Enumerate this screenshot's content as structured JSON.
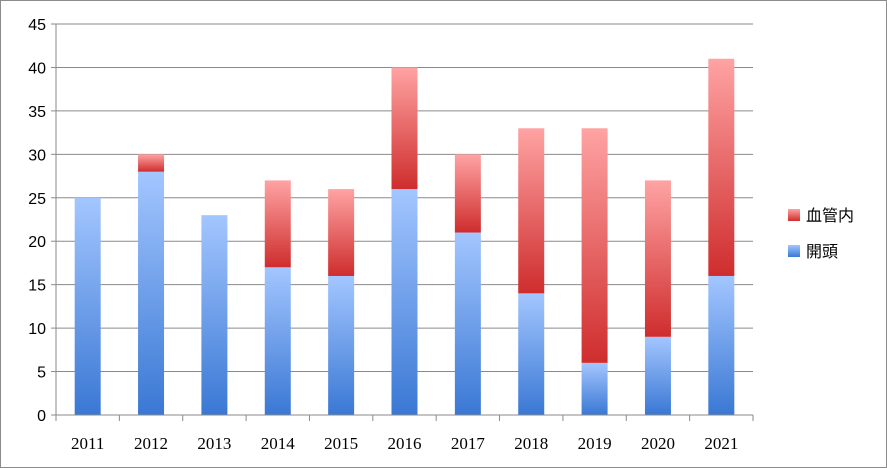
{
  "chart_data": {
    "type": "bar",
    "stacked": true,
    "categories": [
      "2011",
      "2012",
      "2013",
      "2014",
      "2015",
      "2016",
      "2017",
      "2018",
      "2019",
      "2020",
      "2021"
    ],
    "series": [
      {
        "name": "開頭",
        "values": [
          25,
          28,
          23,
          17,
          16,
          26,
          21,
          14,
          6,
          9,
          16
        ],
        "color": "#4f81d6"
      },
      {
        "name": "血管内",
        "values": [
          0,
          2,
          0,
          10,
          10,
          14,
          9,
          19,
          27,
          18,
          25
        ],
        "color": "#d94545"
      }
    ],
    "ylim": [
      0,
      45
    ],
    "yticks": [
      0,
      5,
      10,
      15,
      20,
      25,
      30,
      35,
      40,
      45
    ],
    "grid": true,
    "legend": "right",
    "title": "",
    "xlabel": "",
    "ylabel": ""
  }
}
